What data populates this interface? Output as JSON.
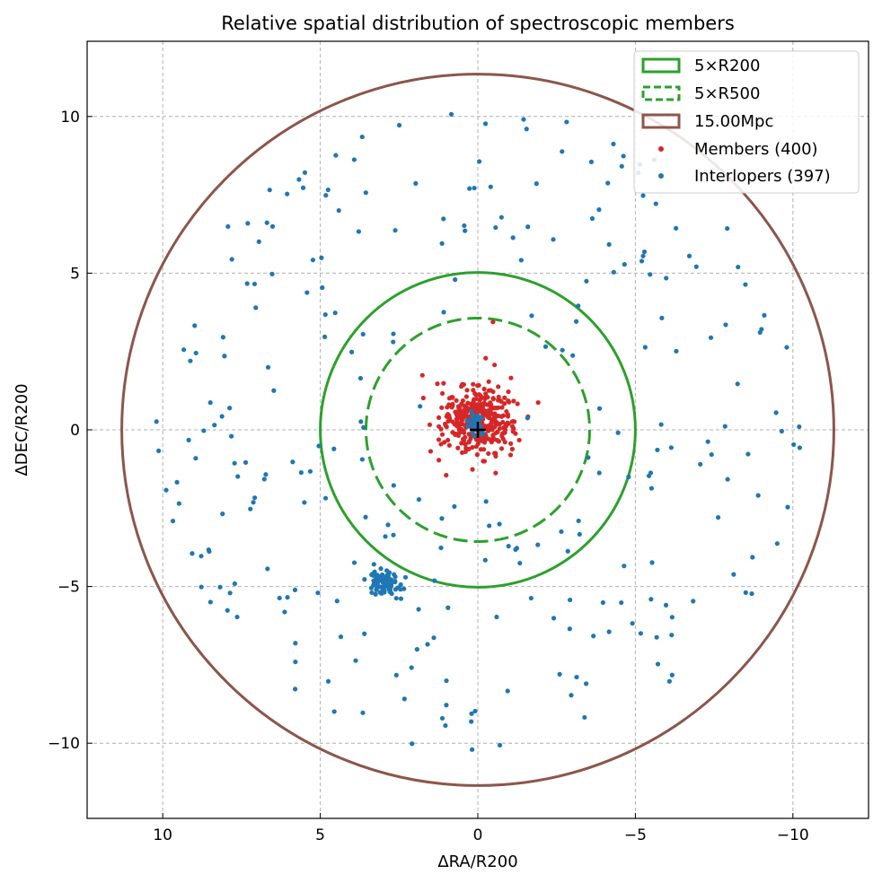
{
  "chart_data": {
    "type": "scatter",
    "title": "Relative spatial distribution of spectroscopic members",
    "xlabel": "ΔRA/R200",
    "ylabel": "ΔDEC/R200",
    "xlim": [
      12.4,
      -12.4
    ],
    "ylim": [
      -12.4,
      12.4
    ],
    "xticks": [
      10,
      5,
      0,
      -5,
      -10
    ],
    "yticks": [
      -10,
      -5,
      0,
      5,
      10
    ],
    "xtick_labels": [
      "10",
      "5",
      "0",
      "−5",
      "−10"
    ],
    "ytick_labels": [
      "−10",
      "−5",
      "0",
      "5",
      "10"
    ],
    "grid": true,
    "legend_position": "top-right",
    "center_marker": {
      "x": 0,
      "y": 0,
      "symbol": "+"
    },
    "circles": [
      {
        "name": "5×R200",
        "radius": 5.0,
        "color": "#2ca02c",
        "style": "solid"
      },
      {
        "name": "5×R500",
        "radius": 3.55,
        "color": "#2ca02c",
        "style": "dashed"
      },
      {
        "name": "15.00Mpc",
        "radius": 11.3,
        "color": "#8c564b",
        "style": "solid"
      }
    ],
    "series": [
      {
        "name": "Members (400)",
        "color": "#d62728",
        "count": 400,
        "clusters": [
          {
            "cx": 0.0,
            "cy": 0.3,
            "sx": 1.0,
            "sy": 0.9,
            "n": 360
          },
          {
            "cx": 0.0,
            "cy": 0.2,
            "sx": 2.0,
            "sy": 1.8,
            "n": 40
          }
        ]
      },
      {
        "name": "Interlopers (397)",
        "color": "#1f77b4",
        "count": 397,
        "clusters": [
          {
            "cx": 3.0,
            "cy": -4.9,
            "sx": 0.45,
            "sy": 0.35,
            "n": 90
          },
          {
            "cx": 0.1,
            "cy": 0.2,
            "sx": 0.3,
            "sy": 0.3,
            "n": 30
          }
        ],
        "scatter_ring": {
          "r_min": 1.5,
          "r_max": 10.3,
          "n": 277
        }
      }
    ]
  }
}
